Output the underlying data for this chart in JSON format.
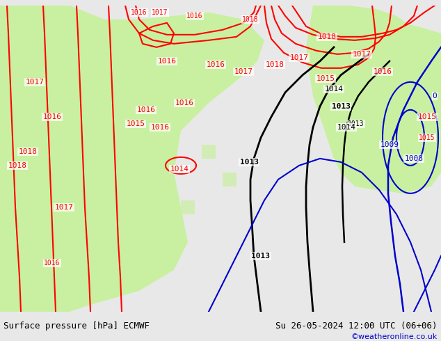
{
  "title_left": "Surface pressure [hPa] ECMWF",
  "title_right": "Su 26-05-2024 12:00 UTC (06+06)",
  "copyright": "©weatheronline.co.uk",
  "bg_color": "#e8e8e8",
  "map_bg_color": "#d8d8d8",
  "land_color": "#c8c8c8",
  "green_color": "#c8f0a0",
  "footer_bg": "#e0e0e0",
  "isobar_colors": {
    "red": "#ff0000",
    "black": "#000000",
    "blue": "#0000cc"
  },
  "figsize": [
    6.34,
    4.9
  ],
  "dpi": 100
}
